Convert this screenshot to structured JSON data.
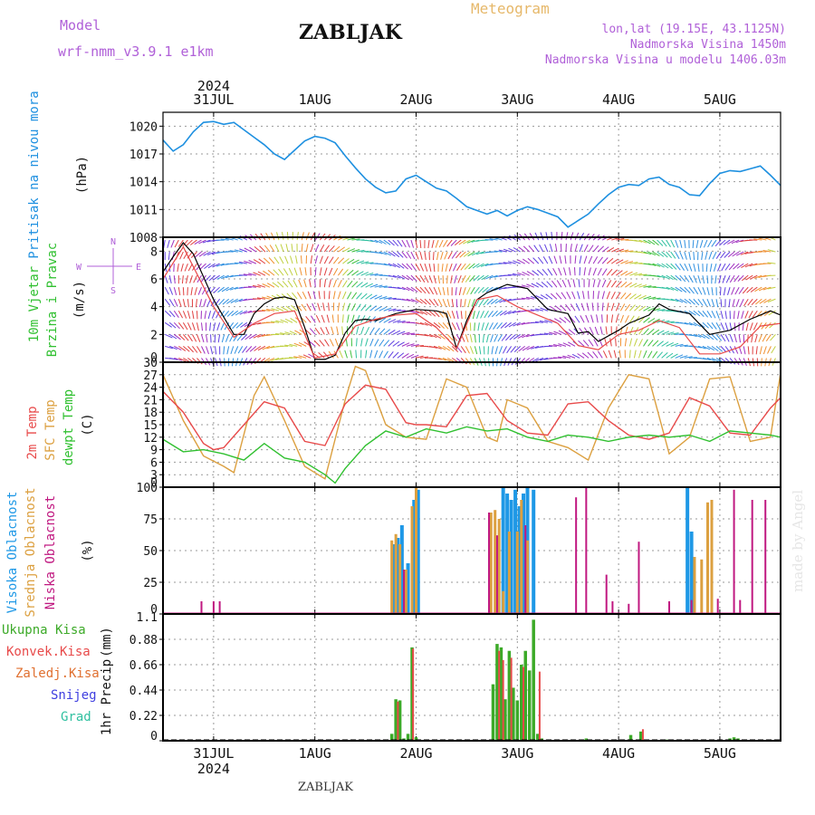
{
  "header": {
    "model_label": "Model",
    "model_name": "wrf-nmm_v3.9.1 e1km",
    "location": "ZABLJAK",
    "meteogram_label": "Meteogram",
    "coords": "lon,lat (19.15E, 43.1125N)",
    "altitude": "Nadmorska Visina 1450m",
    "model_altitude": "Nadmorska Visina u modelu 1406.03m",
    "footer_location": "ZABLJAK",
    "watermark": "made by Angel"
  },
  "time_axis": {
    "year": "2024",
    "day_labels": [
      "31JUL",
      "1AUG",
      "2AUG",
      "3AUG",
      "4AUG",
      "5AUG"
    ],
    "day_positions": [
      0.5,
      1.5,
      2.5,
      3.5,
      4.5,
      5.5
    ],
    "range_days": [
      0.0,
      6.1
    ]
  },
  "colors": {
    "pressure": "#1e90e0",
    "temp2m": "#e84a4a",
    "sfc_temp": "#dca040",
    "dewpoint": "#30c030",
    "wind_speed_line": "#000000",
    "gust": "#e84a4a",
    "high_cloud": "#1e98e6",
    "mid_cloud": "#dca040",
    "low_cloud": "#c01880",
    "total_precip": "#3caa28",
    "conv_precip": "#e84a4a",
    "frozen_precip": "#e07030",
    "snow": "#4040e0",
    "graupel": "#30c0a0",
    "wind_dir_label": "#b060d8"
  },
  "chart_data": [
    {
      "type": "line",
      "title": "",
      "ylabel": [
        "Pritisak na nivou mora",
        "(hPa)"
      ],
      "ylim": [
        1008,
        1021.5
      ],
      "yticks": [
        "1008",
        "1011",
        "1014",
        "1017",
        "1020"
      ],
      "grid": true,
      "series": [
        {
          "x": [
            0.0,
            0.1,
            0.2,
            0.3,
            0.4,
            0.5,
            0.6,
            0.7,
            0.8,
            0.9,
            1.0,
            1.1,
            1.2,
            1.3,
            1.4,
            1.5,
            1.6,
            1.7,
            1.8,
            1.9,
            2.0,
            2.1,
            2.2,
            2.3,
            2.4,
            2.5,
            2.6,
            2.7,
            2.8,
            2.9,
            3.0,
            3.1,
            3.2,
            3.3,
            3.4,
            3.5,
            3.6,
            3.7,
            3.8,
            3.9,
            4.0,
            4.1,
            4.2,
            4.3,
            4.4,
            4.5,
            4.6,
            4.7,
            4.8,
            4.9,
            5.0,
            5.1,
            5.2,
            5.3,
            5.4,
            5.5,
            5.6,
            5.7,
            5.8,
            5.9,
            6.0,
            6.1
          ],
          "values": [
            1018.5,
            1017.3,
            1018.0,
            1019.4,
            1020.4,
            1020.5,
            1020.2,
            1020.4,
            1019.6,
            1018.8,
            1018.0,
            1017.0,
            1016.4,
            1017.4,
            1018.4,
            1018.9,
            1018.7,
            1018.2,
            1016.8,
            1015.5,
            1014.3,
            1013.4,
            1012.8,
            1013.0,
            1014.3,
            1014.7,
            1014.0,
            1013.3,
            1013.0,
            1012.2,
            1011.3,
            1010.9,
            1010.5,
            1010.9,
            1010.3,
            1010.9,
            1011.3,
            1011.0,
            1010.6,
            1010.2,
            1009.1,
            1009.8,
            1010.5,
            1011.6,
            1012.6,
            1013.4,
            1013.7,
            1013.6,
            1014.3,
            1014.5,
            1013.7,
            1013.4,
            1012.6,
            1012.5,
            1013.8,
            1014.9,
            1015.2,
            1015.1,
            1015.4,
            1015.7,
            1014.7,
            1013.6
          ]
        }
      ]
    },
    {
      "type": "line",
      "title": "",
      "ylabel": [
        "10m Vjetar",
        "Brzina i Pravac",
        "(m/s)"
      ],
      "ylim": [
        0,
        9
      ],
      "yticks": [
        "0",
        "2",
        "4",
        "6",
        "8"
      ],
      "grid": true,
      "wind_dir_legend": [
        "N",
        "E",
        "S",
        "W"
      ],
      "series": [
        {
          "name": "speed",
          "x": [
            0.0,
            0.1,
            0.2,
            0.3,
            0.5,
            0.7,
            0.8,
            0.9,
            1.0,
            1.1,
            1.2,
            1.3,
            1.4,
            1.5,
            1.6,
            1.7,
            1.8,
            1.9,
            2.0,
            2.1,
            2.3,
            2.5,
            2.7,
            2.8,
            2.9,
            3.0,
            3.1,
            3.2,
            3.4,
            3.6,
            3.8,
            4.0,
            4.1,
            4.2,
            4.3,
            4.5,
            4.6,
            4.8,
            4.9,
            5.0,
            5.2,
            5.4,
            5.6,
            5.8,
            6.0,
            6.1
          ],
          "values": [
            6.5,
            7.6,
            8.6,
            7.8,
            4.5,
            2.0,
            2.0,
            3.5,
            4.2,
            4.6,
            4.7,
            4.5,
            2.5,
            0.2,
            0.2,
            0.5,
            2.1,
            3.0,
            3.1,
            3.0,
            3.5,
            3.8,
            3.7,
            3.5,
            1.0,
            3.0,
            4.5,
            5.0,
            5.6,
            5.3,
            3.8,
            3.5,
            2.1,
            2.2,
            1.5,
            2.3,
            2.8,
            3.4,
            4.2,
            3.8,
            3.5,
            2.0,
            2.3,
            3.1,
            3.7,
            3.4
          ]
        },
        {
          "name": "gust",
          "x": [
            0.0,
            0.2,
            0.5,
            0.7,
            0.9,
            1.1,
            1.3,
            1.5,
            1.7,
            1.9,
            2.1,
            2.3,
            2.5,
            2.7,
            2.9,
            3.1,
            3.3,
            3.5,
            3.7,
            3.9,
            4.1,
            4.3,
            4.5,
            4.7,
            4.9,
            5.1,
            5.3,
            5.5,
            5.7,
            5.9,
            6.1
          ],
          "values": [
            6.0,
            8.3,
            4.0,
            1.8,
            2.8,
            3.5,
            3.7,
            0.3,
            0.6,
            2.6,
            3.1,
            3.4,
            3.5,
            2.5,
            1.0,
            4.5,
            4.8,
            4.0,
            3.4,
            2.8,
            1.2,
            0.9,
            2.0,
            2.3,
            3.0,
            2.5,
            0.6,
            0.6,
            1.1,
            2.6,
            2.8
          ]
        }
      ]
    },
    {
      "type": "line",
      "title": "",
      "ylabel": [
        "2m Temp",
        "SFC Temp",
        "dewpt Temp",
        "(C)"
      ],
      "ylim": [
        0,
        30
      ],
      "yticks": [
        "0",
        "3",
        "6",
        "9",
        "12",
        "15",
        "18",
        "21",
        "24",
        "27",
        "30"
      ],
      "grid": true,
      "series": [
        {
          "name": "2m Temp",
          "x": [
            0.0,
            0.2,
            0.4,
            0.5,
            0.6,
            0.8,
            1.0,
            1.2,
            1.4,
            1.6,
            1.8,
            2.0,
            2.2,
            2.4,
            2.5,
            2.6,
            2.8,
            3.0,
            3.2,
            3.4,
            3.6,
            3.8,
            4.0,
            4.2,
            4.4,
            4.6,
            4.8,
            5.0,
            5.2,
            5.4,
            5.6,
            5.8,
            6.0,
            6.1
          ],
          "values": [
            23.0,
            18.0,
            10.5,
            9.0,
            9.5,
            15.0,
            20.5,
            19.0,
            11.0,
            10.0,
            20.0,
            24.5,
            23.5,
            15.5,
            15.0,
            15.0,
            14.5,
            22.0,
            22.5,
            16.0,
            13.0,
            12.5,
            20.0,
            20.5,
            16.0,
            12.5,
            11.5,
            13.0,
            21.5,
            19.5,
            13.0,
            12.5,
            19.0,
            21.5
          ]
        },
        {
          "name": "SFC Temp",
          "x": [
            0.0,
            0.2,
            0.4,
            0.6,
            0.7,
            0.9,
            1.0,
            1.2,
            1.4,
            1.6,
            1.8,
            1.9,
            2.0,
            2.2,
            2.4,
            2.6,
            2.8,
            3.0,
            3.2,
            3.3,
            3.4,
            3.6,
            3.8,
            4.0,
            4.2,
            4.4,
            4.6,
            4.8,
            5.0,
            5.2,
            5.4,
            5.6,
            5.8,
            6.0,
            6.1
          ],
          "values": [
            27.0,
            16.0,
            7.5,
            5.0,
            3.5,
            22.0,
            26.5,
            16.0,
            5.0,
            2.0,
            21.0,
            29.0,
            28.0,
            15.0,
            12.0,
            11.5,
            26.0,
            24.0,
            12.0,
            11.0,
            21.0,
            19.0,
            11.0,
            9.5,
            6.5,
            19.0,
            27.0,
            26.0,
            8.0,
            12.0,
            26.0,
            26.5,
            11.0,
            12.0,
            27.5
          ]
        },
        {
          "name": "dewpt Temp",
          "x": [
            0.0,
            0.2,
            0.4,
            0.6,
            0.8,
            1.0,
            1.2,
            1.4,
            1.6,
            1.7,
            1.8,
            2.0,
            2.2,
            2.4,
            2.6,
            2.8,
            3.0,
            3.2,
            3.4,
            3.6,
            3.8,
            4.0,
            4.2,
            4.4,
            4.6,
            4.8,
            5.0,
            5.2,
            5.4,
            5.6,
            5.8,
            6.0,
            6.1
          ],
          "values": [
            11.5,
            8.5,
            9.0,
            8.0,
            6.5,
            10.5,
            7.0,
            6.0,
            3.0,
            1.0,
            4.5,
            10.0,
            13.5,
            12.0,
            14.0,
            13.0,
            14.5,
            13.5,
            14.0,
            12.0,
            11.0,
            12.5,
            12.0,
            11.0,
            12.0,
            12.5,
            12.0,
            12.5,
            11.0,
            13.5,
            13.0,
            12.5,
            12.0
          ]
        }
      ]
    },
    {
      "type": "bar",
      "title": "",
      "ylabel": [
        "Visoka Oblacnost",
        "Srednja Oblacnost",
        "Niska Oblacnost",
        "(%)"
      ],
      "ylim": [
        0,
        100
      ],
      "yticks": [
        "0",
        "25",
        "50",
        "75",
        "100"
      ],
      "grid": true,
      "series": [
        {
          "name": "Visoka Oblacnost",
          "x": [
            2.28,
            2.32,
            2.36,
            2.42,
            2.48,
            2.52,
            3.36,
            3.4,
            3.44,
            3.48,
            3.52,
            3.56,
            3.6,
            3.66,
            5.18,
            5.22
          ],
          "values": [
            55,
            60,
            70,
            40,
            90,
            98,
            100,
            95,
            90,
            98,
            85,
            95,
            100,
            98,
            100,
            65
          ]
        },
        {
          "name": "Srednja Oblacnost",
          "x": [
            2.26,
            2.3,
            2.34,
            2.4,
            2.46,
            2.5,
            3.24,
            3.28,
            3.32,
            3.36,
            3.42,
            3.5,
            3.54,
            3.6,
            5.25,
            5.32,
            5.38,
            5.42
          ],
          "values": [
            58,
            63,
            55,
            35,
            85,
            100,
            80,
            82,
            75,
            18,
            65,
            65,
            90,
            58,
            45,
            43,
            88,
            90
          ]
        },
        {
          "name": "Niska Oblacnost",
          "x": [
            0.38,
            0.5,
            0.56,
            2.38,
            3.22,
            3.3,
            3.58,
            4.08,
            4.18,
            4.38,
            4.44,
            4.6,
            4.7,
            5.0,
            5.22,
            5.48,
            5.64,
            5.7,
            5.82,
            5.95
          ],
          "values": [
            10,
            10,
            10,
            35,
            80,
            62,
            70,
            92,
            100,
            31,
            10,
            8,
            57,
            10,
            11,
            12,
            98,
            11,
            90,
            90
          ]
        }
      ]
    },
    {
      "type": "bar",
      "title": "",
      "ylabel": [
        "1hr Precip",
        "(mm)"
      ],
      "legend": [
        "Ukupna Kisa",
        "Konvek.Kisa",
        "Zaledj.Kisa",
        "Snijeg",
        "Grad"
      ],
      "ylim": [
        0,
        1.1
      ],
      "yticks": [
        "0",
        "0.22",
        "0.44",
        "0.66",
        "0.88",
        "1.1"
      ],
      "grid": true,
      "series": [
        {
          "name": "Ukupna Kisa",
          "x": [
            2.26,
            2.3,
            2.34,
            2.38,
            2.42,
            2.46,
            2.5,
            3.26,
            3.3,
            3.34,
            3.38,
            3.42,
            3.46,
            3.5,
            3.54,
            3.58,
            3.62,
            3.66,
            3.7,
            3.74,
            4.18,
            4.62,
            4.72,
            4.98,
            5.6,
            5.64,
            5.68,
            6.08
          ],
          "values": [
            0.06,
            0.36,
            0.35,
            0.02,
            0.06,
            0.81,
            0.03,
            0.49,
            0.84,
            0.81,
            0.36,
            0.78,
            0.46,
            0.35,
            0.66,
            0.78,
            0.61,
            1.05,
            0.06,
            0.02,
            0.02,
            0.05,
            0.08,
            0.01,
            0.02,
            0.03,
            0.02,
            0.01
          ]
        },
        {
          "name": "Konvek.Kisa",
          "x": [
            2.32,
            2.47,
            3.32,
            3.36,
            3.44,
            3.56,
            3.72,
            4.74
          ],
          "values": [
            0.34,
            0.8,
            0.78,
            0.7,
            0.72,
            0.64,
            0.6,
            0.1
          ]
        }
      ]
    }
  ]
}
